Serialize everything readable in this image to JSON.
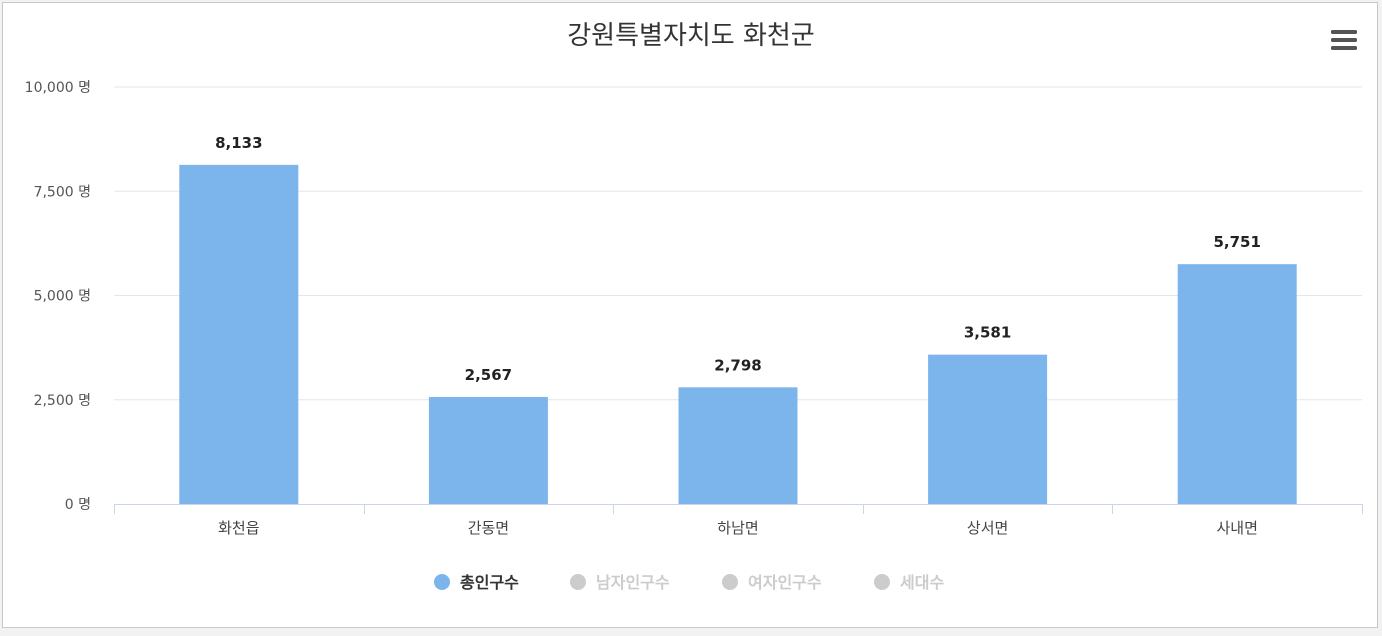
{
  "chart_data": {
    "type": "bar",
    "title": "강원특별자치도 화천군",
    "categories": [
      "화천읍",
      "간동면",
      "하남면",
      "상서면",
      "사내면"
    ],
    "series": [
      {
        "name": "총인구수",
        "values": [
          8133,
          2567,
          2798,
          3581,
          5751
        ],
        "visible": true
      },
      {
        "name": "남자인구수",
        "visible": false
      },
      {
        "name": "여자인구수",
        "visible": false
      },
      {
        "name": "세대수",
        "visible": false
      }
    ],
    "data_labels": [
      "8,133",
      "2,567",
      "2,798",
      "3,581",
      "5,751"
    ],
    "ylim": [
      0,
      10000
    ],
    "yticks": [
      0,
      2500,
      5000,
      7500,
      10000
    ],
    "ytick_labels": [
      "0 명",
      "2,500 명",
      "5,000 명",
      "7,500 명",
      "10,000 명"
    ],
    "grid": true,
    "legend_position": "bottom-center",
    "colors": {
      "bar": "#7cb5ec",
      "legend_active_text": "#333333",
      "legend_inactive": "#cccccc",
      "grid": "#e6e6e6",
      "axis": "#ccd6eb"
    }
  },
  "ui": {
    "menu_icon": "hamburger-menu-icon"
  }
}
